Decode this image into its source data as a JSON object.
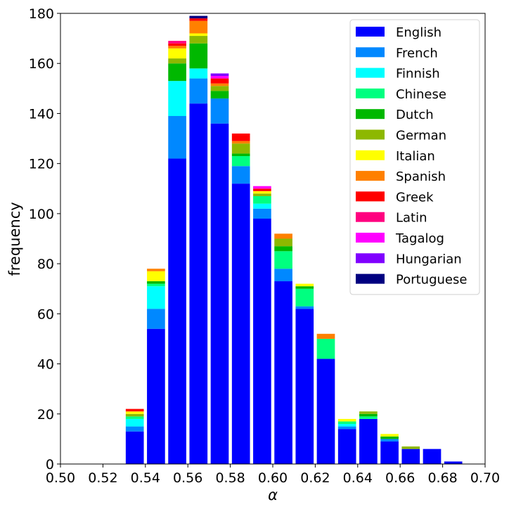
{
  "chart_data": {
    "type": "bar",
    "stacked": true,
    "title": "",
    "xlabel": "α",
    "ylabel": "frequency",
    "xlim": [
      0.5,
      0.7
    ],
    "ylim": [
      0,
      180
    ],
    "xticks": [
      "0.50",
      "0.52",
      "0.54",
      "0.56",
      "0.58",
      "0.60",
      "0.62",
      "0.64",
      "0.66",
      "0.68",
      "0.70"
    ],
    "yticks": [
      "0",
      "20",
      "40",
      "60",
      "80",
      "100",
      "120",
      "140",
      "160",
      "180"
    ],
    "grid": false,
    "legend_position": "upper right",
    "bar_width": 0.0085,
    "x": [
      0.535,
      0.545,
      0.555,
      0.565,
      0.575,
      0.585,
      0.595,
      0.605,
      0.615,
      0.625,
      0.635,
      0.645,
      0.655,
      0.665,
      0.675,
      0.685
    ],
    "totals": [
      22,
      78,
      169,
      179,
      156,
      132,
      111,
      92,
      72,
      52,
      18,
      21,
      12,
      7,
      6,
      1
    ],
    "series": [
      {
        "name": "English",
        "color": "#0000ff",
        "values": [
          13,
          54,
          122,
          144,
          136,
          112,
          98,
          73,
          62,
          42,
          14,
          18,
          9,
          6,
          6,
          1
        ]
      },
      {
        "name": "French",
        "color": "#0088ff",
        "values": [
          2,
          8,
          17,
          10,
          10,
          7,
          4,
          5,
          1,
          0,
          1,
          0,
          1,
          0,
          0,
          0
        ]
      },
      {
        "name": "Finnish",
        "color": "#00ffff",
        "values": [
          3,
          9,
          14,
          4,
          0,
          0,
          2,
          0,
          0,
          0,
          1,
          0,
          0,
          0,
          0,
          0
        ]
      },
      {
        "name": "Chinese",
        "color": "#00ff80",
        "values": [
          1,
          1,
          0,
          0,
          0,
          4,
          3,
          7,
          7,
          8,
          1,
          1,
          0,
          0,
          0,
          0
        ]
      },
      {
        "name": "Dutch",
        "color": "#00b800",
        "values": [
          0,
          1,
          7,
          10,
          3,
          1,
          0,
          2,
          1,
          0,
          0,
          1,
          1,
          0,
          0,
          0
        ]
      },
      {
        "name": "German",
        "color": "#8db800",
        "values": [
          1,
          0,
          2,
          3,
          2,
          4,
          1,
          3,
          0,
          0,
          0,
          1,
          0,
          1,
          0,
          0
        ]
      },
      {
        "name": "Italian",
        "color": "#ffff00",
        "values": [
          1,
          4,
          4,
          1,
          0,
          0,
          1,
          0,
          1,
          0,
          1,
          0,
          1,
          0,
          0,
          0
        ]
      },
      {
        "name": "Spanish",
        "color": "#ff8000",
        "values": [
          0,
          1,
          1,
          5,
          1,
          1,
          0,
          2,
          0,
          2,
          0,
          0,
          0,
          0,
          0,
          0
        ]
      },
      {
        "name": "Greek",
        "color": "#ff0000",
        "values": [
          1,
          0,
          1,
          1,
          2,
          3,
          1,
          0,
          0,
          0,
          0,
          0,
          0,
          0,
          0,
          0
        ]
      },
      {
        "name": "Latin",
        "color": "#ff0080",
        "values": [
          0,
          0,
          1,
          0,
          0,
          0,
          0,
          0,
          0,
          0,
          0,
          0,
          0,
          0,
          0,
          0
        ]
      },
      {
        "name": "Tagalog",
        "color": "#ff00ff",
        "values": [
          0,
          0,
          0,
          0,
          1,
          0,
          1,
          0,
          0,
          0,
          0,
          0,
          0,
          0,
          0,
          0
        ]
      },
      {
        "name": "Hungarian",
        "color": "#8000ff",
        "values": [
          0,
          0,
          0,
          0,
          1,
          0,
          0,
          0,
          0,
          0,
          0,
          0,
          0,
          0,
          0,
          0
        ]
      },
      {
        "name": "Portuguese",
        "color": "#000080",
        "values": [
          0,
          0,
          0,
          1,
          0,
          0,
          0,
          0,
          0,
          0,
          0,
          0,
          0,
          0,
          0,
          0
        ]
      }
    ]
  },
  "labels": {
    "xlabel": "α",
    "ylabel": "frequency"
  }
}
